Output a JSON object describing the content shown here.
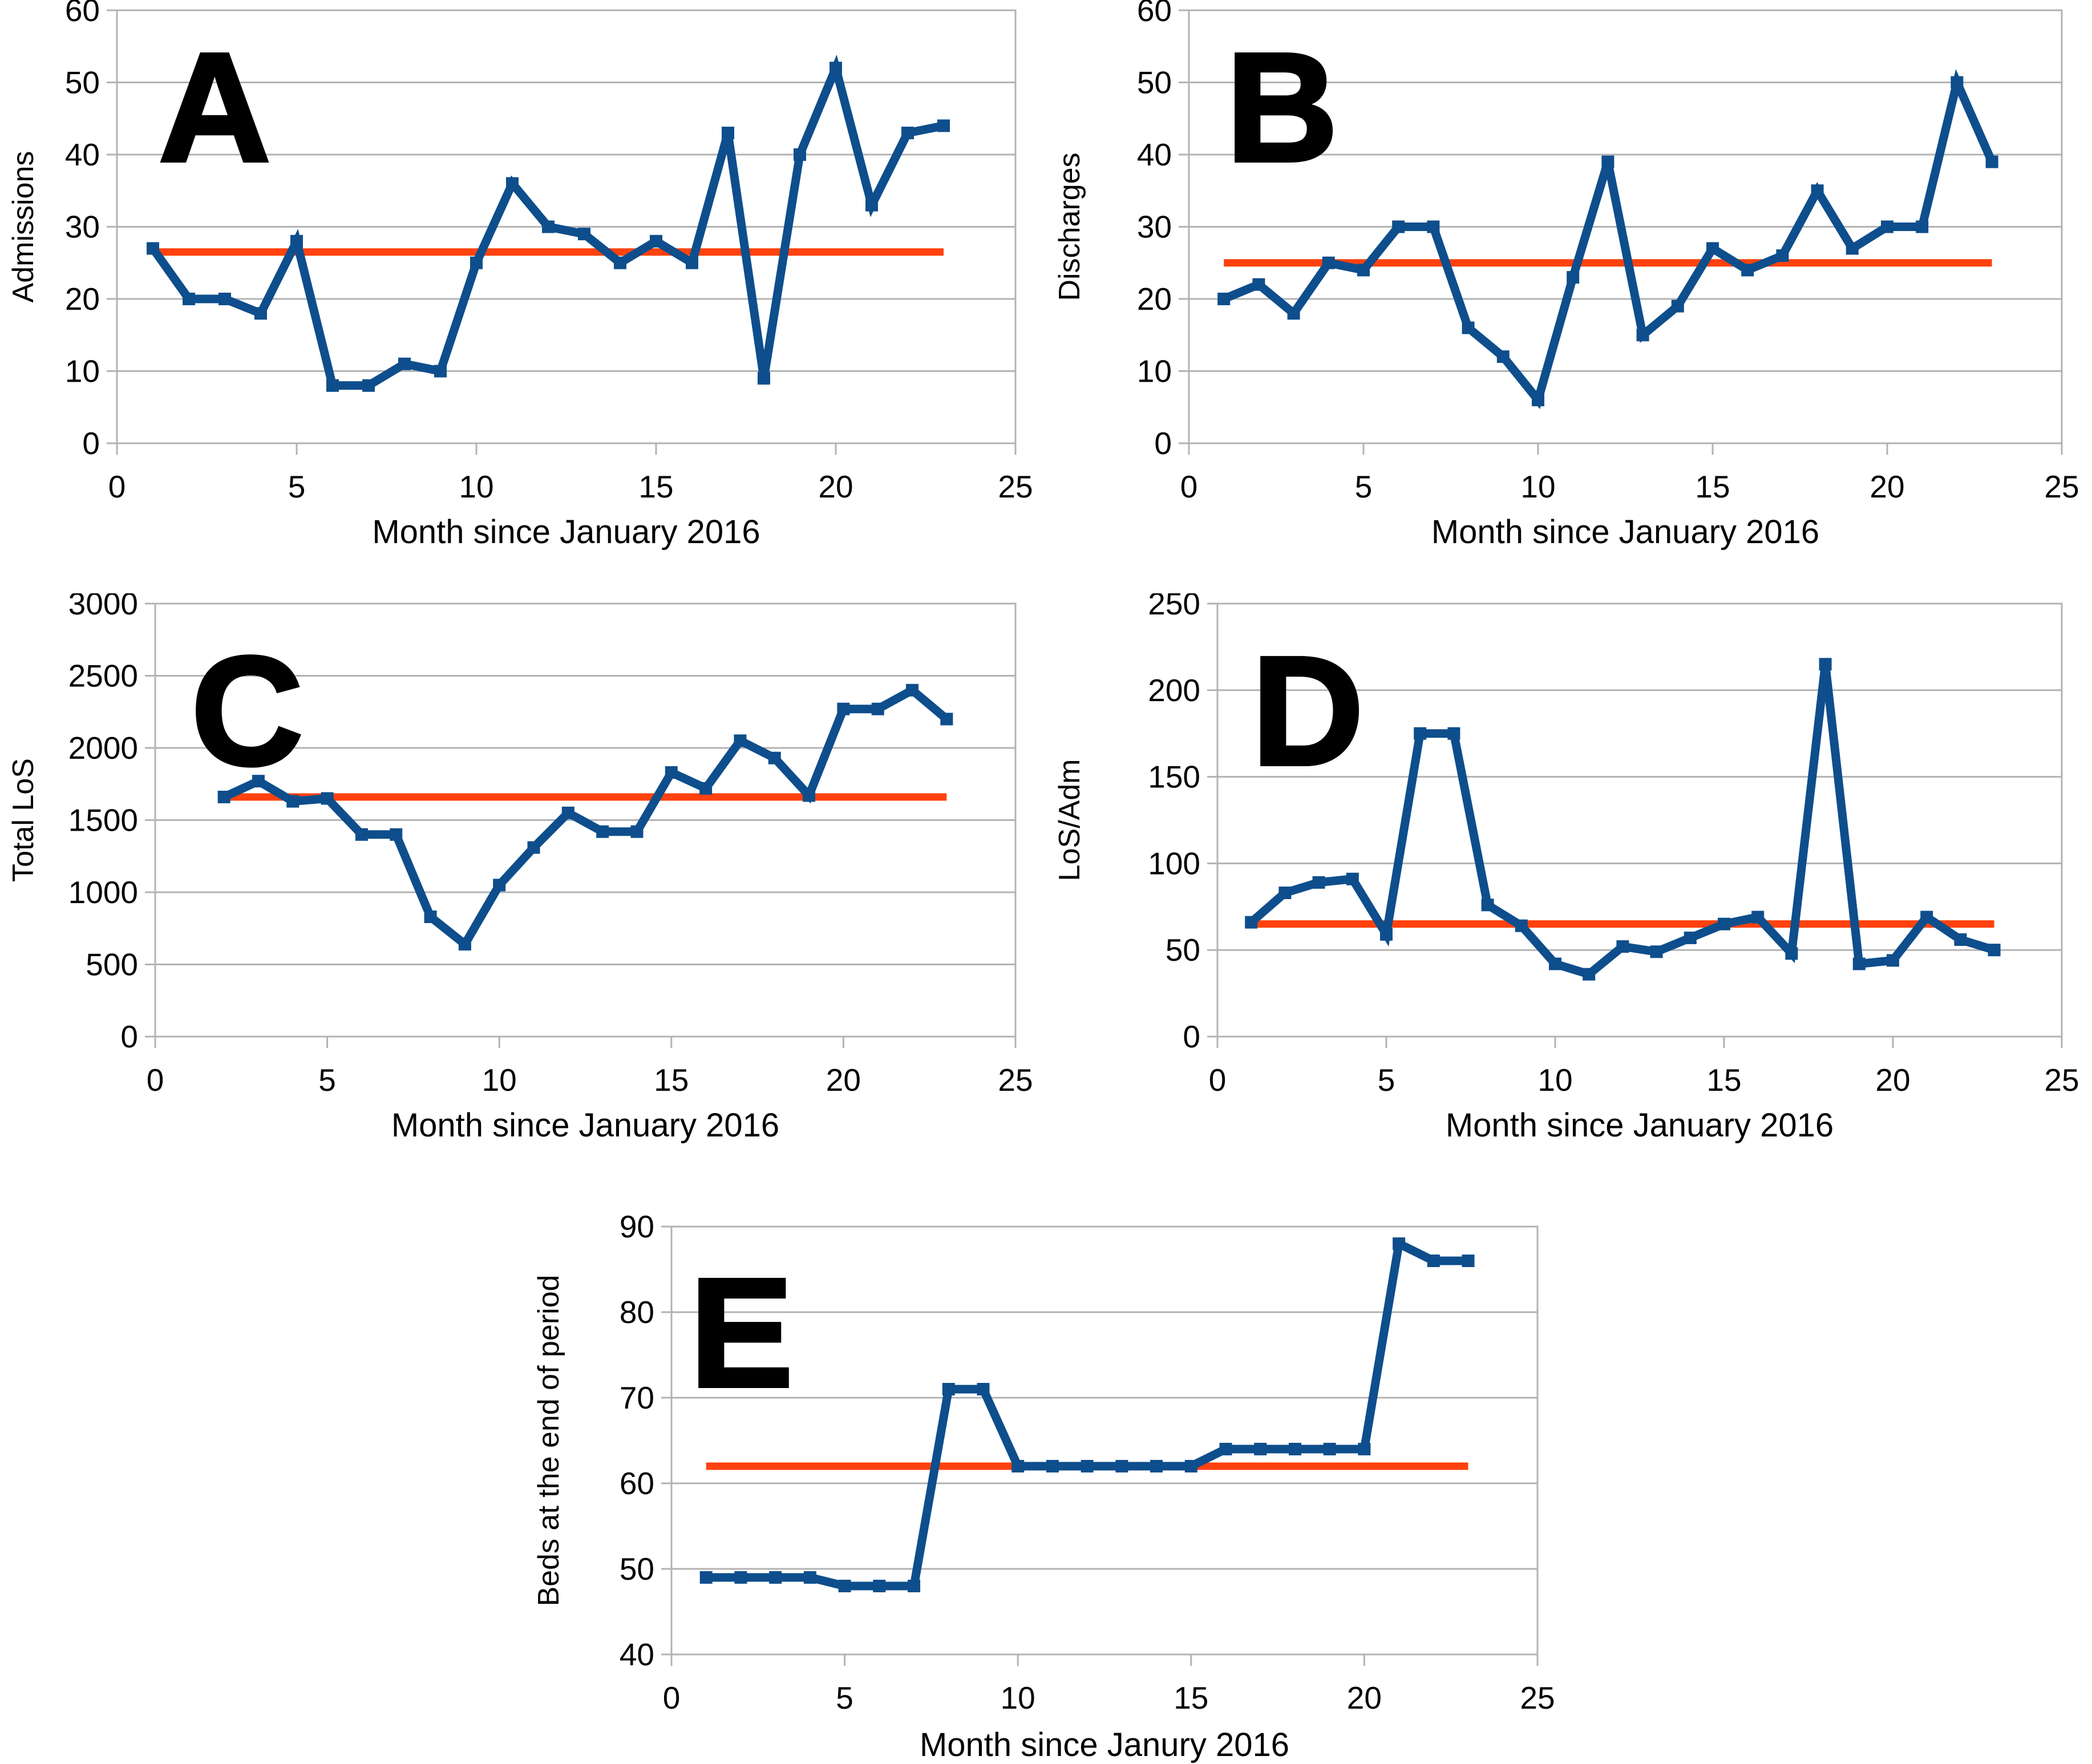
{
  "figure": {
    "background": "#FFFFFF",
    "panels": [
      "A",
      "B",
      "C",
      "D",
      "E"
    ]
  },
  "colors": {
    "series_blue": "#0E4E8C",
    "reference_orange": "#FF420E",
    "gridline_gray": "#B3B3B3",
    "text_black": "#000000"
  },
  "chart_data": [
    {
      "panel": "A",
      "type": "line",
      "title": "A",
      "ylabel": "Admissions",
      "xlabel": "Month since January 2016",
      "xlim": [
        0,
        25
      ],
      "ylim": [
        0,
        60
      ],
      "x_ticks": [
        0,
        5,
        10,
        15,
        20,
        25
      ],
      "y_ticks": [
        0,
        10,
        20,
        30,
        40,
        50,
        60
      ],
      "grid": "horizontal",
      "legend": null,
      "x": [
        1,
        2,
        3,
        4,
        5,
        6,
        7,
        8,
        9,
        10,
        11,
        12,
        13,
        14,
        15,
        16,
        17,
        18,
        19,
        20,
        21,
        22,
        23
      ],
      "y": [
        27,
        20,
        20,
        18,
        28,
        8,
        8,
        11,
        10,
        25,
        36,
        30,
        29,
        25,
        28,
        25,
        43,
        9,
        40,
        52,
        33,
        43,
        44
      ],
      "reference_line": 26.5
    },
    {
      "panel": "B",
      "type": "line",
      "title": "B",
      "ylabel": "Discharges",
      "xlabel": "Month since January 2016",
      "xlim": [
        0,
        25
      ],
      "ylim": [
        0,
        60
      ],
      "x_ticks": [
        0,
        5,
        10,
        15,
        20,
        25
      ],
      "y_ticks": [
        0,
        10,
        20,
        30,
        40,
        50,
        60
      ],
      "grid": "horizontal",
      "legend": null,
      "x": [
        1,
        2,
        3,
        4,
        5,
        6,
        7,
        8,
        9,
        10,
        11,
        12,
        13,
        14,
        15,
        16,
        17,
        18,
        19,
        20,
        21,
        22,
        23
      ],
      "y": [
        20,
        22,
        18,
        25,
        24,
        30,
        30,
        16,
        12,
        6,
        23,
        39,
        15,
        19,
        27,
        24,
        26,
        35,
        27,
        30,
        30,
        50,
        39
      ],
      "reference_line": 25
    },
    {
      "panel": "C",
      "type": "line",
      "title": "C",
      "ylabel": "Total LoS",
      "xlabel": "Month since January 2016",
      "xlim": [
        0,
        25
      ],
      "ylim": [
        0,
        3000
      ],
      "x_ticks": [
        0,
        5,
        10,
        15,
        20,
        25
      ],
      "y_ticks": [
        0,
        500,
        1000,
        1500,
        2000,
        2500,
        3000
      ],
      "grid": "horizontal",
      "legend": null,
      "x": [
        2,
        3,
        4,
        5,
        6,
        7,
        8,
        9,
        10,
        11,
        12,
        13,
        14,
        15,
        16,
        17,
        18,
        19,
        20,
        21,
        22,
        23
      ],
      "y": [
        1660,
        1770,
        1630,
        1650,
        1400,
        1400,
        830,
        640,
        1050,
        1310,
        1550,
        1420,
        1420,
        1830,
        1720,
        2050,
        1930,
        1670,
        2270,
        2270,
        2400,
        2200
      ],
      "reference_line": 1660
    },
    {
      "panel": "D",
      "type": "line",
      "title": "D",
      "ylabel": "LoS/Adm",
      "xlabel": "Month since January 2016",
      "xlim": [
        0,
        25
      ],
      "ylim": [
        0,
        250
      ],
      "x_ticks": [
        0,
        5,
        10,
        15,
        20,
        25
      ],
      "y_ticks": [
        0,
        50,
        100,
        150,
        200,
        250
      ],
      "grid": "horizontal",
      "legend": null,
      "x": [
        1,
        2,
        3,
        4,
        5,
        6,
        7,
        8,
        9,
        10,
        11,
        12,
        13,
        14,
        15,
        16,
        17,
        18,
        19,
        20,
        21,
        22,
        23
      ],
      "y": [
        66,
        83,
        89,
        91,
        59,
        175,
        175,
        76,
        64,
        42,
        36,
        52,
        49,
        57,
        65,
        69,
        48,
        215,
        42,
        44,
        69,
        56,
        50
      ],
      "reference_line": 65
    },
    {
      "panel": "E",
      "type": "line",
      "title": "E",
      "ylabel": "Beds at the end of period",
      "xlabel": "Month since Janury 2016",
      "xlim": [
        0,
        25
      ],
      "ylim": [
        40,
        90
      ],
      "x_ticks": [
        0,
        5,
        10,
        15,
        20,
        25
      ],
      "y_ticks": [
        40,
        50,
        60,
        70,
        80,
        90
      ],
      "grid": "horizontal",
      "legend": null,
      "x": [
        1,
        2,
        3,
        4,
        5,
        6,
        7,
        8,
        9,
        10,
        11,
        12,
        13,
        14,
        15,
        16,
        17,
        18,
        19,
        20,
        21,
        22,
        23
      ],
      "y": [
        49,
        49,
        49,
        49,
        48,
        48,
        48,
        71,
        71,
        62,
        62,
        62,
        62,
        62,
        62,
        64,
        64,
        64,
        64,
        64,
        88,
        86,
        86
      ],
      "reference_line": 62
    }
  ]
}
